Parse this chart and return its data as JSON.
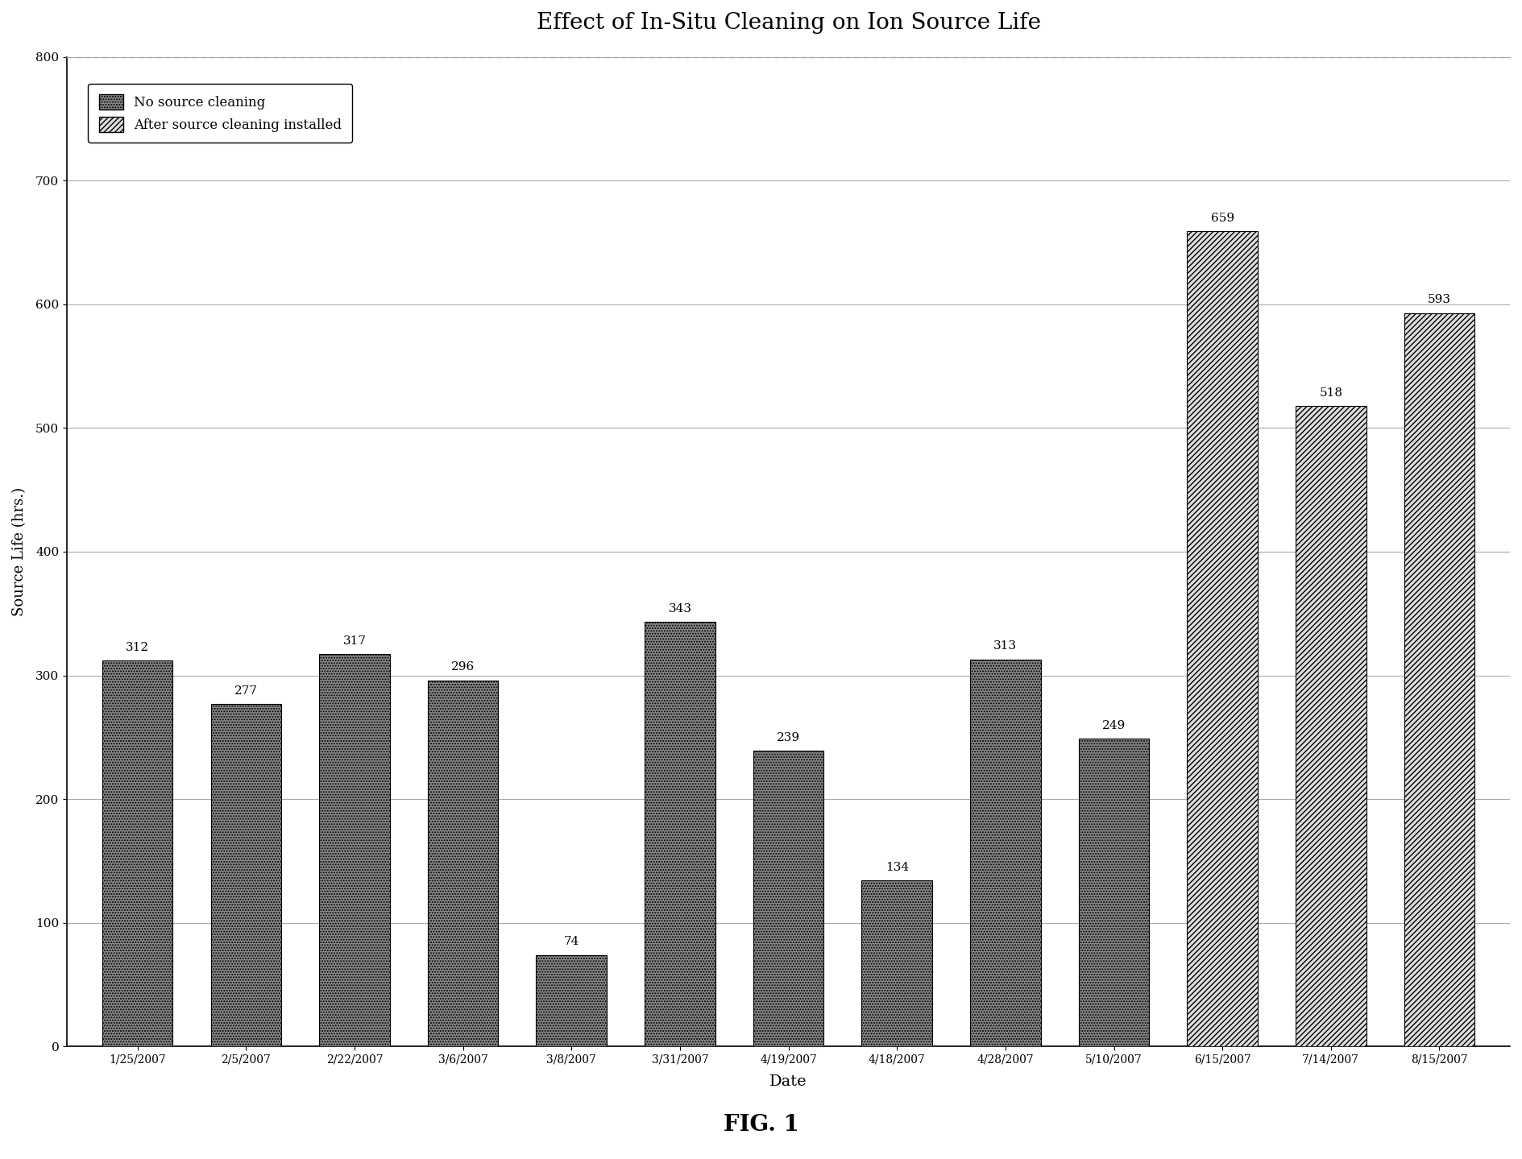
{
  "title": "Effect of In-Situ Cleaning on Ion Source Life",
  "xlabel": "Date",
  "ylabel": "Source Life (hrs.)",
  "fig_label": "FIG. 1",
  "ylim": [
    0,
    800
  ],
  "yticks": [
    0,
    100,
    200,
    300,
    400,
    500,
    600,
    700,
    800
  ],
  "categories": [
    "1/25/2007",
    "2/5/2007",
    "2/22/2007",
    "3/6/2007",
    "3/8/2007",
    "3/31/2007",
    "4/19/2007",
    "4/18/2007",
    "4/28/2007",
    "5/10/2007",
    "6/15/2007",
    "7/14/2007",
    "8/15/2007"
  ],
  "values": [
    312,
    277,
    317,
    296,
    74,
    343,
    239,
    134,
    313,
    249,
    659,
    518,
    593
  ],
  "bar_types": [
    0,
    0,
    0,
    0,
    0,
    0,
    0,
    0,
    0,
    0,
    1,
    1,
    1
  ],
  "legend_labels": [
    "No source cleaning",
    "After source cleaning installed"
  ],
  "background_color": "#ffffff",
  "plot_bg_color": "#ffffff",
  "grid_color": "#aaaaaa",
  "dark_face_color": "#888888",
  "light_face_color": "#dddddd"
}
